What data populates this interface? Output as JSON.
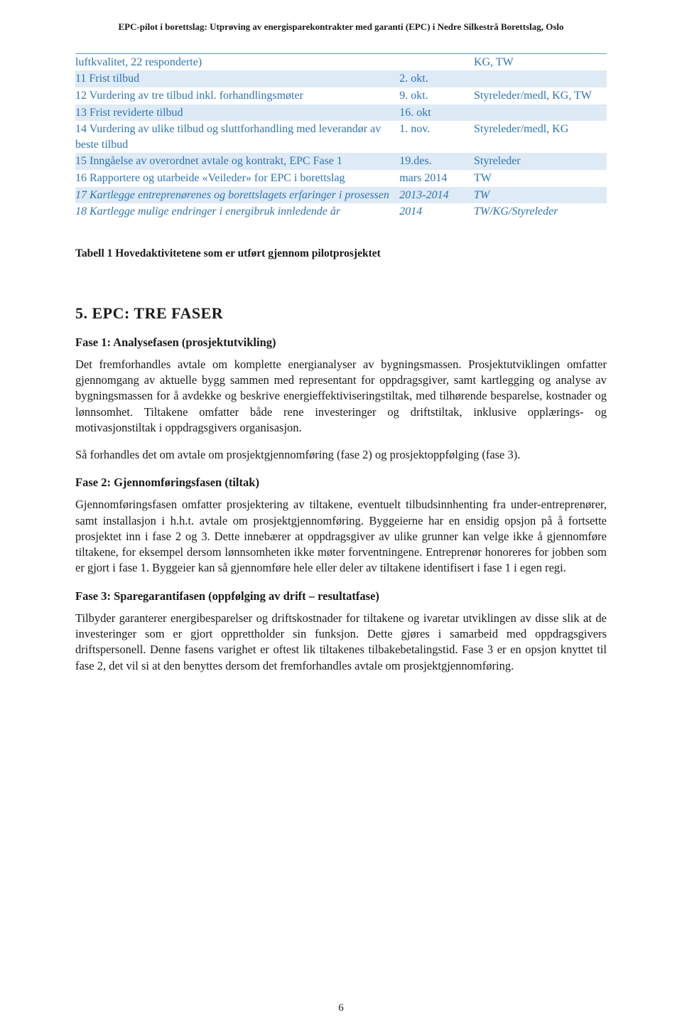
{
  "header_text": "EPC-pilot i borettslag: Utprøving av energisparekontrakter med garanti (EPC) i Nedre Silkestrå Borettslag, Oslo",
  "table_rows": [
    {
      "c1": "luftkvalitet, 22 responderte)",
      "c2": "",
      "c3": "KG, TW",
      "shade": false,
      "italic": false,
      "top_rule": true
    },
    {
      "c1": "11 Frist tilbud",
      "c2": "2. okt.",
      "c3": "",
      "shade": true,
      "italic": false
    },
    {
      "c1": "12 Vurdering av tre tilbud inkl. forhandlingsmøter",
      "c2": "9. okt.",
      "c3": "Styreleder/medl, KG, TW",
      "shade": false,
      "italic": false
    },
    {
      "c1": "13 Frist reviderte tilbud",
      "c2": "16. okt",
      "c3": "",
      "shade": true,
      "italic": false
    },
    {
      "c1": "14 Vurdering av ulike tilbud og sluttforhandling med leverandør av beste tilbud",
      "c2": "1. nov.",
      "c3": "Styreleder/medl, KG",
      "shade": false,
      "italic": false
    },
    {
      "c1": "15 Inngåelse av overordnet avtale og kontrakt, EPC Fase 1",
      "c2": "19.des.",
      "c3": "Styreleder",
      "shade": true,
      "italic": false
    },
    {
      "c1": "16 Rapportere og utarbeide «Veileder» for EPC i borettslag",
      "c2": "mars 2014",
      "c3": "TW",
      "shade": false,
      "italic": false
    },
    {
      "c1": "17 Kartlegge entreprenørenes og borettslagets erfaringer i prosessen",
      "c2": "2013-2014",
      "c3": "TW",
      "shade": true,
      "italic": true
    },
    {
      "c1": "18 Kartlegge mulige endringer i energibruk innledende år",
      "c2": "2014",
      "c3": "TW/KG/Styreleder",
      "shade": false,
      "italic": true
    }
  ],
  "caption": "Tabell 1 Hovedaktivitetene som er utført gjennom pilotprosjektet",
  "section_title": "5. EPC: TRE FASER",
  "phase1_title": "Fase 1: Analysefasen (prosjektutvikling)",
  "phase1_p1": "Det fremforhandles avtale om komplette energianalyser av bygningsmassen. Prosjektutviklingen omfatter gjennomgang av aktuelle bygg sammen med representant for oppdragsgiver, samt kartlegging og analyse av bygningsmassen for å avdekke og beskrive energieffektiviseringstiltak, med tilhørende besparelse, kostnader og lønnsomhet. Tiltakene omfatter både rene investeringer og driftstiltak, inklusive opplærings- og motivasjonstiltak i oppdragsgivers organisasjon.",
  "phase1_p2": "Så forhandles det om avtale om prosjektgjennomføring (fase 2) og prosjektoppfølging (fase 3).",
  "phase2_title": "Fase 2: Gjennomføringsfasen (tiltak)",
  "phase2_p1": "Gjennomføringsfasen omfatter prosjektering av tiltakene, eventuelt tilbudsinnhenting fra under-entreprenører, samt installasjon i h.h.t. avtale om prosjektgjennomføring. Byggeierne har en ensidig opsjon på å fortsette prosjektet inn i fase 2 og 3. Dette innebærer at oppdragsgiver av ulike grunner kan velge ikke å gjennomføre tiltakene, for eksempel dersom lønnsomheten ikke møter forventningene. Entreprenør honoreres for jobben som er gjort i fase 1. Byggeier kan så gjennomføre hele eller deler av tiltakene identifisert i fase 1 i egen regi.",
  "phase3_title": "Fase 3: Sparegarantifasen (oppfølging av drift – resultatfase)",
  "phase3_p1": "Tilbyder garanterer energibesparelser og driftskostnader for tiltakene og ivaretar utviklingen av disse slik at de investeringer som er gjort opprettholder sin funksjon. Dette gjøres i samarbeid med oppdragsgivers driftspersonell. Denne fasens varighet er oftest lik tiltakenes tilbakebetalingstid. Fase 3 er en opsjon knyttet til fase 2, det vil si at den benyttes dersom det fremforhandles avtale om prosjektgjennomføring.",
  "page_number": "6",
  "colors": {
    "shade_bg": "#deeaf6",
    "rule": "#5b9bd5",
    "link_blue": "#2e74b5"
  }
}
